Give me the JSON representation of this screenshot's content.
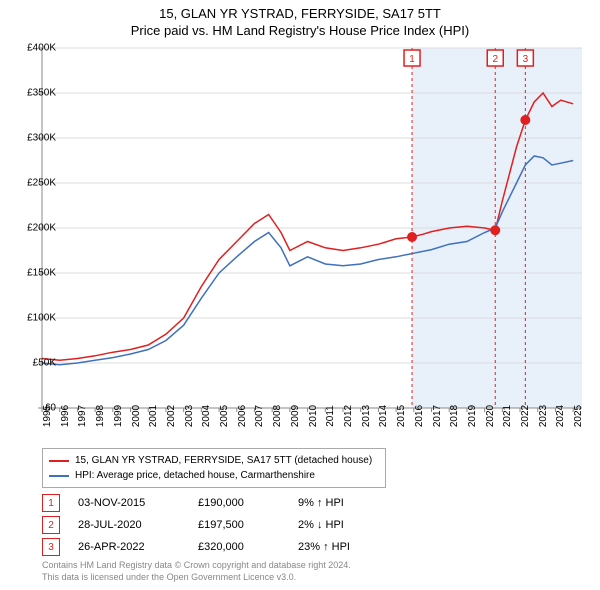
{
  "title_line1": "15, GLAN YR YSTRAD, FERRYSIDE, SA17 5TT",
  "title_line2": "Price paid vs. HM Land Registry's House Price Index (HPI)",
  "chart": {
    "type": "line",
    "background_color": "#ffffff",
    "grid_color": "#dddddd",
    "axis_color": "#888888",
    "y_axis": {
      "min": 0,
      "max": 400000,
      "ticks": [
        0,
        50000,
        100000,
        150000,
        200000,
        250000,
        300000,
        350000,
        400000
      ],
      "labels": [
        "£0",
        "£50K",
        "£100K",
        "£150K",
        "£200K",
        "£250K",
        "£300K",
        "£350K",
        "£400K"
      ],
      "label_fontsize": 10
    },
    "x_axis": {
      "min": 1995,
      "max": 2025.5,
      "ticks": [
        1995,
        1996,
        1997,
        1998,
        1999,
        2000,
        2001,
        2002,
        2003,
        2004,
        2005,
        2006,
        2007,
        2008,
        2009,
        2010,
        2011,
        2012,
        2013,
        2014,
        2015,
        2016,
        2017,
        2018,
        2019,
        2020,
        2021,
        2022,
        2023,
        2024,
        2025
      ],
      "label_fontsize": 10,
      "label_rotation": -90
    },
    "shaded_region": {
      "x_start": 2015.9,
      "x_end": 2025.5,
      "fill": "#e8f0fa"
    },
    "series": [
      {
        "name": "subject",
        "color": "#e02020",
        "line_width": 1.5,
        "data": [
          [
            1995,
            55000
          ],
          [
            1996,
            53000
          ],
          [
            1997,
            55000
          ],
          [
            1998,
            58000
          ],
          [
            1999,
            62000
          ],
          [
            2000,
            65000
          ],
          [
            2001,
            70000
          ],
          [
            2002,
            82000
          ],
          [
            2003,
            100000
          ],
          [
            2004,
            135000
          ],
          [
            2005,
            165000
          ],
          [
            2006,
            185000
          ],
          [
            2007,
            205000
          ],
          [
            2007.8,
            215000
          ],
          [
            2008.5,
            195000
          ],
          [
            2009,
            175000
          ],
          [
            2010,
            185000
          ],
          [
            2011,
            178000
          ],
          [
            2012,
            175000
          ],
          [
            2013,
            178000
          ],
          [
            2014,
            182000
          ],
          [
            2015,
            188000
          ],
          [
            2015.9,
            190000
          ],
          [
            2016.5,
            193000
          ],
          [
            2017,
            196000
          ],
          [
            2018,
            200000
          ],
          [
            2019,
            202000
          ],
          [
            2020,
            200000
          ],
          [
            2020.6,
            197500
          ],
          [
            2021,
            230000
          ],
          [
            2021.8,
            290000
          ],
          [
            2022.3,
            320000
          ],
          [
            2022.8,
            340000
          ],
          [
            2023.3,
            350000
          ],
          [
            2023.8,
            335000
          ],
          [
            2024.3,
            342000
          ],
          [
            2025,
            338000
          ]
        ]
      },
      {
        "name": "hpi",
        "color": "#4070c0",
        "line_width": 1.5,
        "data": [
          [
            1995,
            50000
          ],
          [
            1996,
            48000
          ],
          [
            1997,
            50000
          ],
          [
            1998,
            53000
          ],
          [
            1999,
            56000
          ],
          [
            2000,
            60000
          ],
          [
            2001,
            65000
          ],
          [
            2002,
            75000
          ],
          [
            2003,
            92000
          ],
          [
            2004,
            122000
          ],
          [
            2005,
            150000
          ],
          [
            2006,
            168000
          ],
          [
            2007,
            185000
          ],
          [
            2007.8,
            195000
          ],
          [
            2008.5,
            178000
          ],
          [
            2009,
            158000
          ],
          [
            2010,
            168000
          ],
          [
            2011,
            160000
          ],
          [
            2012,
            158000
          ],
          [
            2013,
            160000
          ],
          [
            2014,
            165000
          ],
          [
            2015,
            168000
          ],
          [
            2016,
            172000
          ],
          [
            2017,
            176000
          ],
          [
            2018,
            182000
          ],
          [
            2019,
            185000
          ],
          [
            2020,
            195000
          ],
          [
            2020.6,
            200000
          ],
          [
            2021,
            218000
          ],
          [
            2021.8,
            250000
          ],
          [
            2022.3,
            270000
          ],
          [
            2022.8,
            280000
          ],
          [
            2023.3,
            278000
          ],
          [
            2023.8,
            270000
          ],
          [
            2024.3,
            272000
          ],
          [
            2025,
            275000
          ]
        ]
      }
    ],
    "markers": [
      {
        "n": "1",
        "x": 2015.9,
        "y": 190000,
        "color": "#e02020",
        "line_color": "#e02020"
      },
      {
        "n": "2",
        "x": 2020.6,
        "y": 197500,
        "color": "#e02020",
        "line_color": "#e02020"
      },
      {
        "n": "3",
        "x": 2022.3,
        "y": 320000,
        "color": "#e02020",
        "line_color": "#e02020"
      }
    ],
    "marker_badge_top_y": 0
  },
  "legend": {
    "border_color": "#aaaaaa",
    "items": [
      {
        "color": "#e02020",
        "label": "15, GLAN YR YSTRAD, FERRYSIDE, SA17 5TT (detached house)"
      },
      {
        "color": "#4070c0",
        "label": "HPI: Average price, detached house, Carmarthenshire"
      }
    ]
  },
  "marker_rows": [
    {
      "n": "1",
      "badge_color": "#e02020",
      "date": "03-NOV-2015",
      "price": "£190,000",
      "delta": "9% ↑ HPI"
    },
    {
      "n": "2",
      "badge_color": "#e02020",
      "date": "28-JUL-2020",
      "price": "£197,500",
      "delta": "2% ↓ HPI"
    },
    {
      "n": "3",
      "badge_color": "#e02020",
      "date": "26-APR-2022",
      "price": "£320,000",
      "delta": "23% ↑ HPI"
    }
  ],
  "license": {
    "line1": "Contains HM Land Registry data © Crown copyright and database right 2024.",
    "line2": "This data is licensed under the Open Government Licence v3.0."
  }
}
